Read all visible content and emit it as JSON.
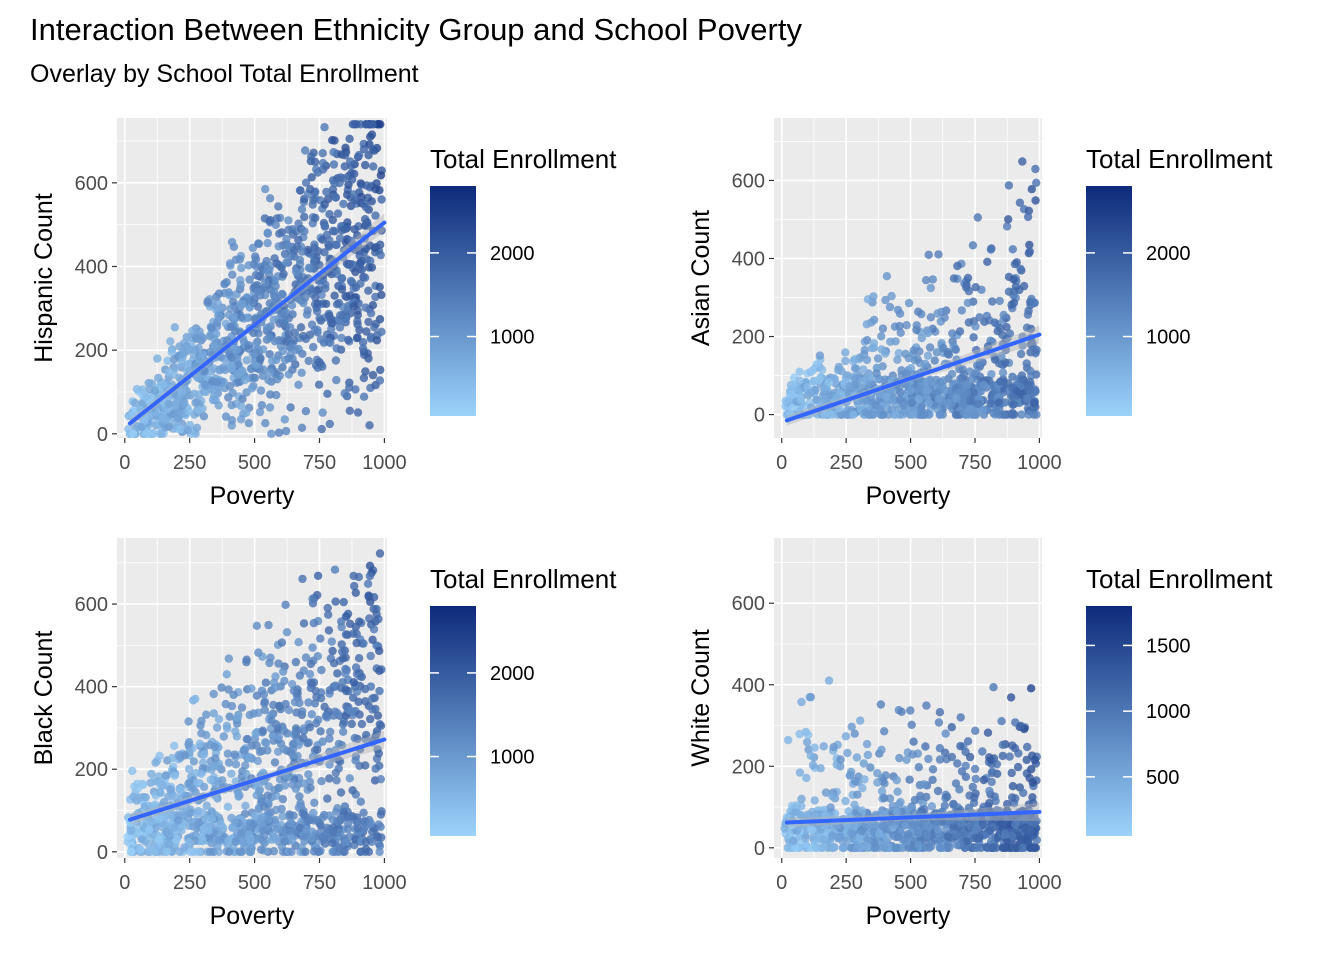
{
  "title": "Interaction Between Ethnicity Group and School Poverty",
  "subtitle": "Overlay by School Total Enrollment",
  "colors": {
    "panel_bg": "#ebebeb",
    "grid": "#ffffff",
    "low": "#9bd3fb",
    "high": "#0d2a7a",
    "smooth_line": "#3366ff",
    "ribbon": "#b3b3b3"
  },
  "chart_data": [
    {
      "type": "scatter",
      "xlabel": "Poverty",
      "ylabel": "Hispanic Count",
      "xlim": [
        -30,
        1010
      ],
      "ylim": [
        -10,
        755
      ],
      "xticks": [
        0,
        250,
        500,
        750,
        1000
      ],
      "xtick_labels": [
        "0",
        "250",
        "500",
        "750",
        "1000"
      ],
      "yticks": [
        0,
        200,
        400,
        600
      ],
      "ytick_labels": [
        "0",
        "200",
        "400",
        "600"
      ],
      "legend": {
        "title": "Total Enrollment",
        "position": "right",
        "range": [
          50,
          2800
        ],
        "breaks": [
          1000,
          2000
        ],
        "break_labels": [
          "1000",
          "2000"
        ]
      },
      "trend_line": {
        "x": [
          20,
          1000
        ],
        "y": [
          25,
          505
        ]
      },
      "scatter_model": {
        "n": 1150,
        "slope": 0.5,
        "intercept": 10,
        "spread": 1.15,
        "color_base": 0.12,
        "color_slope": 0.5,
        "seed": 11
      }
    },
    {
      "type": "scatter",
      "xlabel": "Poverty",
      "ylabel": "Asian Count",
      "xlim": [
        -30,
        1010
      ],
      "ylim": [
        -60,
        760
      ],
      "xticks": [
        0,
        250,
        500,
        750,
        1000
      ],
      "xtick_labels": [
        "0",
        "250",
        "500",
        "750",
        "1000"
      ],
      "yticks": [
        0,
        200,
        400,
        600
      ],
      "ytick_labels": [
        "0",
        "200",
        "400",
        "600"
      ],
      "legend": {
        "title": "Total Enrollment",
        "position": "right",
        "range": [
          50,
          2800
        ],
        "breaks": [
          1000,
          2000
        ],
        "break_labels": [
          "1000",
          "2000"
        ]
      },
      "trend_line": {
        "x": [
          20,
          1000
        ],
        "y": [
          -15,
          205
        ]
      },
      "scatter_model": {
        "n": 950,
        "slope": 0.22,
        "intercept": 0,
        "spread": 2.2,
        "color_base": 0.12,
        "color_slope": 0.45,
        "seed": 23,
        "floor_fraction": 0.45
      }
    },
    {
      "type": "scatter",
      "xlabel": "Poverty",
      "ylabel": "Black Count",
      "xlim": [
        -30,
        1010
      ],
      "ylim": [
        -15,
        760
      ],
      "xticks": [
        0,
        250,
        500,
        750,
        1000
      ],
      "xtick_labels": [
        "0",
        "250",
        "500",
        "750",
        "1000"
      ],
      "yticks": [
        0,
        200,
        400,
        600
      ],
      "ytick_labels": [
        "0",
        "200",
        "400",
        "600"
      ],
      "legend": {
        "title": "Total Enrollment",
        "position": "right",
        "range": [
          50,
          2800
        ],
        "breaks": [
          1000,
          2000
        ],
        "break_labels": [
          "1000",
          "2000"
        ]
      },
      "trend_line": {
        "x": [
          20,
          1000
        ],
        "y": [
          78,
          272
        ]
      },
      "scatter_model": {
        "n": 1150,
        "slope": 0.35,
        "intercept": 40,
        "spread": 1.6,
        "color_base": 0.1,
        "color_slope": 0.45,
        "seed": 37,
        "floor_fraction": 0.3
      }
    },
    {
      "type": "scatter",
      "xlabel": "Poverty",
      "ylabel": "White Count",
      "xlim": [
        -30,
        1010
      ],
      "ylim": [
        -25,
        760
      ],
      "xticks": [
        0,
        250,
        500,
        750,
        1000
      ],
      "xtick_labels": [
        "0",
        "250",
        "500",
        "750",
        "1000"
      ],
      "yticks": [
        0,
        200,
        400,
        600
      ],
      "ytick_labels": [
        "0",
        "200",
        "400",
        "600"
      ],
      "legend": {
        "title": "Total Enrollment",
        "position": "right",
        "range": [
          50,
          1800
        ],
        "breaks": [
          500,
          1000,
          1500
        ],
        "break_labels": [
          "500",
          "1000",
          "1500"
        ]
      },
      "trend_line": {
        "x": [
          20,
          1000
        ],
        "y": [
          62,
          88
        ]
      },
      "scatter_model": {
        "n": 1000,
        "slope": 0.0,
        "intercept": 80,
        "spread": 3.0,
        "color_base": 0.12,
        "color_slope": 0.55,
        "seed": 53,
        "floor_fraction": 0.55
      }
    }
  ]
}
